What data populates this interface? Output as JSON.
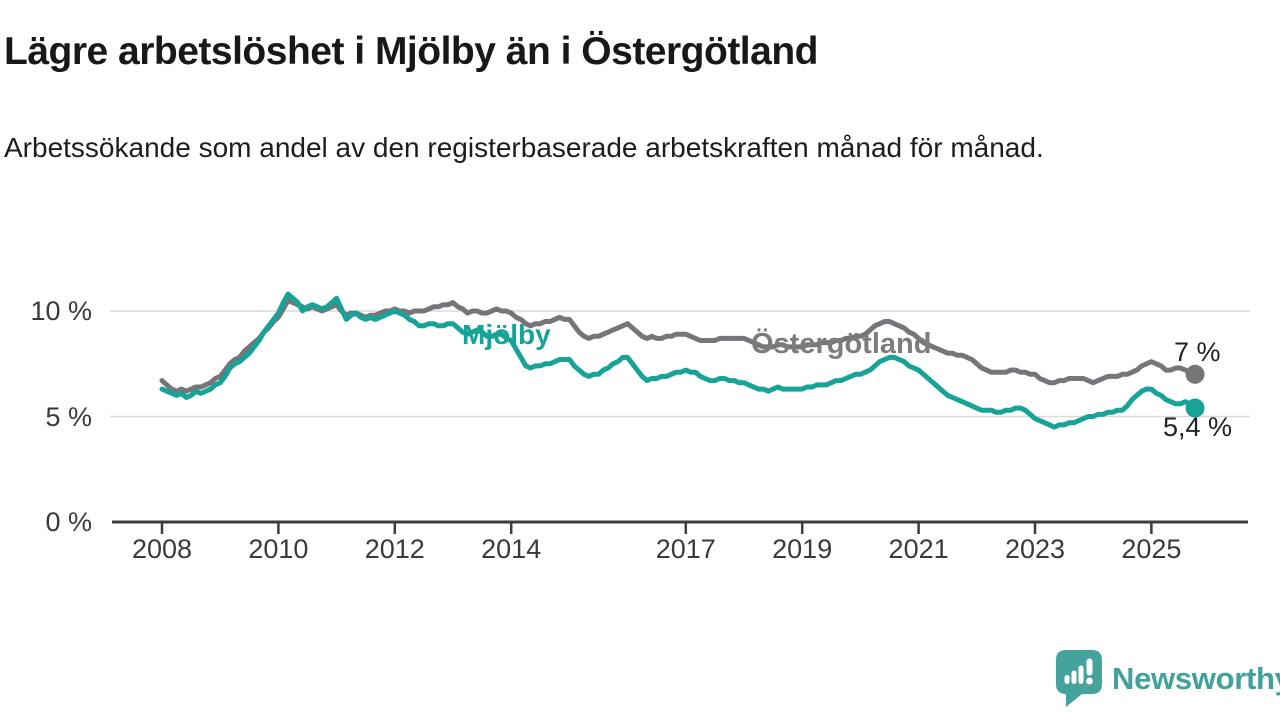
{
  "title": "Lägre arbetslöshet i Mjölby än i Östergötland",
  "subtitle": "Arbetssökande som andel av den registerbaserade arbetskraften månad för månad.",
  "footer": {
    "brand": "Newsworthy"
  },
  "chart_data": {
    "type": "line",
    "unit": "%",
    "x_start": "2008-01",
    "frequency": "monthly",
    "x_end": "2025-10",
    "grid": "horizontal",
    "ylim": [
      0,
      12
    ],
    "x_ticks": [
      "2008",
      "2010",
      "2012",
      "2014",
      "2017",
      "2019",
      "2021",
      "2023",
      "2025"
    ],
    "x_tick_years": [
      2008,
      2010,
      2012,
      2014,
      2017,
      2019,
      2021,
      2023,
      2025
    ],
    "y_ticks": [
      {
        "value": 0,
        "label": "0 %"
      },
      {
        "value": 5,
        "label": "5 %"
      },
      {
        "value": 10,
        "label": "10 %"
      }
    ],
    "series": [
      {
        "name": "Östergötland",
        "color": "#76767a",
        "end_label": "7 %",
        "end_value": 7.0,
        "values": [
          6.7,
          6.5,
          6.3,
          6.2,
          6.3,
          6.2,
          6.3,
          6.4,
          6.4,
          6.5,
          6.6,
          6.8,
          6.9,
          7.2,
          7.5,
          7.7,
          7.8,
          8.1,
          8.3,
          8.5,
          8.7,
          9.0,
          9.2,
          9.5,
          9.7,
          10.1,
          10.5,
          10.4,
          10.3,
          10.2,
          10.1,
          10.2,
          10.1,
          10.0,
          10.1,
          10.2,
          10.3,
          10.0,
          9.8,
          9.9,
          9.9,
          9.8,
          9.7,
          9.8,
          9.8,
          9.9,
          10.0,
          10.0,
          10.1,
          10.0,
          10.0,
          9.9,
          10.0,
          10.0,
          10.0,
          10.1,
          10.2,
          10.2,
          10.3,
          10.3,
          10.4,
          10.2,
          10.1,
          9.9,
          10.0,
          10.0,
          9.9,
          9.9,
          10.0,
          10.1,
          10.0,
          10.0,
          9.9,
          9.7,
          9.6,
          9.4,
          9.3,
          9.4,
          9.4,
          9.5,
          9.5,
          9.6,
          9.7,
          9.6,
          9.6,
          9.3,
          9.0,
          8.8,
          8.7,
          8.8,
          8.8,
          8.9,
          9.0,
          9.1,
          9.2,
          9.3,
          9.4,
          9.2,
          9.0,
          8.8,
          8.7,
          8.8,
          8.7,
          8.7,
          8.8,
          8.8,
          8.9,
          8.9,
          8.9,
          8.8,
          8.7,
          8.6,
          8.6,
          8.6,
          8.6,
          8.7,
          8.7,
          8.7,
          8.7,
          8.7,
          8.7,
          8.6,
          8.5,
          8.4,
          8.3,
          8.3,
          8.3,
          8.4,
          8.4,
          8.3,
          8.3,
          8.3,
          8.3,
          8.4,
          8.4,
          8.4,
          8.5,
          8.5,
          8.5,
          8.6,
          8.6,
          8.7,
          8.7,
          8.8,
          8.8,
          8.9,
          9.1,
          9.3,
          9.4,
          9.5,
          9.5,
          9.4,
          9.3,
          9.2,
          9.0,
          8.9,
          8.7,
          8.5,
          8.4,
          8.3,
          8.2,
          8.1,
          8.0,
          8.0,
          7.9,
          7.9,
          7.8,
          7.7,
          7.5,
          7.3,
          7.2,
          7.1,
          7.1,
          7.1,
          7.1,
          7.2,
          7.2,
          7.1,
          7.1,
          7.0,
          7.0,
          6.8,
          6.7,
          6.6,
          6.6,
          6.7,
          6.7,
          6.8,
          6.8,
          6.8,
          6.8,
          6.7,
          6.6,
          6.7,
          6.8,
          6.9,
          6.9,
          6.9,
          7.0,
          7.0,
          7.1,
          7.2,
          7.4,
          7.5,
          7.6,
          7.5,
          7.4,
          7.2,
          7.2,
          7.3,
          7.3,
          7.2,
          7.1,
          7.0
        ]
      },
      {
        "name": "Mjölby",
        "color": "#17a398",
        "end_label": "5,4 %",
        "end_value": 5.4,
        "values": [
          6.3,
          6.2,
          6.1,
          6.0,
          6.1,
          5.9,
          6.0,
          6.2,
          6.1,
          6.2,
          6.3,
          6.5,
          6.6,
          6.9,
          7.3,
          7.5,
          7.6,
          7.8,
          8.0,
          8.3,
          8.6,
          9.0,
          9.3,
          9.6,
          9.9,
          10.4,
          10.8,
          10.6,
          10.4,
          10.0,
          10.2,
          10.3,
          10.2,
          10.1,
          10.2,
          10.4,
          10.6,
          10.1,
          9.6,
          9.8,
          9.9,
          9.7,
          9.6,
          9.7,
          9.6,
          9.7,
          9.8,
          9.9,
          10.0,
          9.9,
          9.8,
          9.6,
          9.5,
          9.3,
          9.3,
          9.4,
          9.4,
          9.3,
          9.3,
          9.4,
          9.4,
          9.2,
          9.0,
          8.9,
          9.0,
          9.1,
          9.0,
          8.8,
          8.8,
          8.9,
          8.9,
          8.7,
          8.6,
          8.2,
          7.8,
          7.4,
          7.3,
          7.4,
          7.4,
          7.5,
          7.5,
          7.6,
          7.7,
          7.7,
          7.7,
          7.4,
          7.2,
          7.0,
          6.9,
          7.0,
          7.0,
          7.2,
          7.3,
          7.5,
          7.6,
          7.8,
          7.8,
          7.5,
          7.2,
          6.9,
          6.7,
          6.8,
          6.8,
          6.9,
          6.9,
          7.0,
          7.1,
          7.1,
          7.2,
          7.1,
          7.1,
          6.9,
          6.8,
          6.7,
          6.7,
          6.8,
          6.8,
          6.7,
          6.7,
          6.6,
          6.6,
          6.5,
          6.4,
          6.3,
          6.3,
          6.2,
          6.3,
          6.4,
          6.3,
          6.3,
          6.3,
          6.3,
          6.3,
          6.4,
          6.4,
          6.5,
          6.5,
          6.5,
          6.6,
          6.7,
          6.7,
          6.8,
          6.9,
          7.0,
          7.0,
          7.1,
          7.2,
          7.4,
          7.6,
          7.7,
          7.8,
          7.8,
          7.7,
          7.6,
          7.4,
          7.3,
          7.2,
          7.0,
          6.8,
          6.6,
          6.4,
          6.2,
          6.0,
          5.9,
          5.8,
          5.7,
          5.6,
          5.5,
          5.4,
          5.3,
          5.3,
          5.3,
          5.2,
          5.2,
          5.3,
          5.3,
          5.4,
          5.4,
          5.3,
          5.1,
          4.9,
          4.8,
          4.7,
          4.6,
          4.5,
          4.6,
          4.6,
          4.7,
          4.7,
          4.8,
          4.9,
          5.0,
          5.0,
          5.1,
          5.1,
          5.2,
          5.2,
          5.3,
          5.3,
          5.5,
          5.8,
          6.0,
          6.2,
          6.3,
          6.3,
          6.1,
          6.0,
          5.8,
          5.7,
          5.6,
          5.6,
          5.7,
          5.6,
          5.4
        ]
      }
    ]
  }
}
